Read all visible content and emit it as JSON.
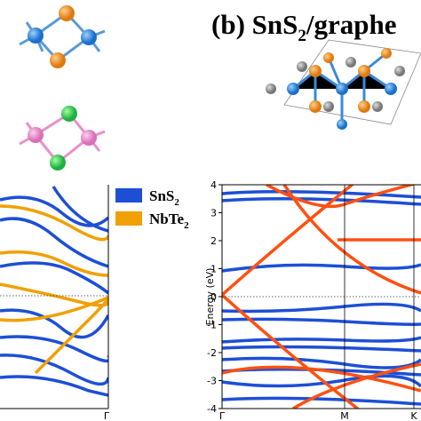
{
  "panel_b": {
    "label": "(b)",
    "title_main": "SnS",
    "title_sub": "2",
    "title_rest": "/graphe"
  },
  "legend": [
    {
      "name": "SnS",
      "sub": "2",
      "color": "#1d4fd6"
    },
    {
      "name": "NbTe",
      "sub": "2",
      "color": "#f0a000"
    }
  ],
  "left_plot": {
    "xtick": "Γ"
  },
  "right_plot": {
    "ylabel": "Energy (eV)",
    "ylim": [
      -4,
      4
    ],
    "yticks": [
      -4,
      -3,
      -2,
      -1,
      0,
      1,
      2,
      3,
      4
    ],
    "xticks": [
      "Γ",
      "M",
      "K"
    ],
    "band_colors": [
      "#1d4fd6",
      "#ff5010"
    ]
  }
}
